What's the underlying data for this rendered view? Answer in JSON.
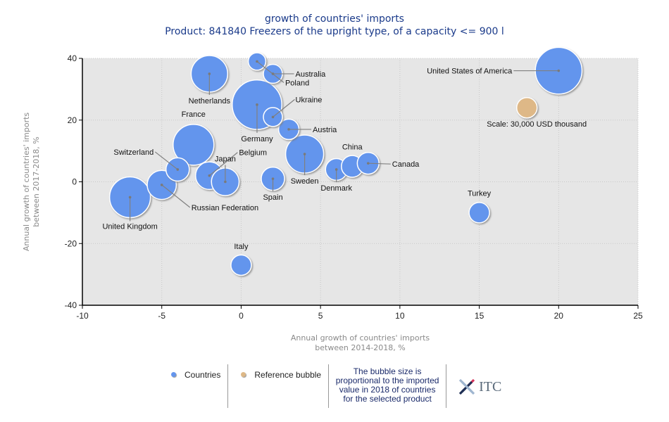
{
  "chart_data": {
    "type": "scatter",
    "subtype": "bubble",
    "title": "growth of countries' imports",
    "subtitle": "Product: 841840 Freezers of the upright type, of a capacity <= 900 l",
    "xlabel": "Annual growth of countries' imports between 2014-2018, %",
    "xlabel_lines": [
      "Annual growth of countries' imports",
      "between 2014-2018, %"
    ],
    "ylabel": "Annual growth of countries' imports between 2017-2018, %",
    "ylabel_lines": [
      "Annual growth of countries' imports",
      "between 2017-2018, %"
    ],
    "xlim": [
      -10,
      25
    ],
    "ylim": [
      -40,
      40
    ],
    "xticks": [
      -10,
      -5,
      0,
      5,
      10,
      15,
      20,
      25
    ],
    "yticks": [
      -40,
      -20,
      0,
      20,
      40
    ],
    "grid": true,
    "size_unit": "USD thousand (imported value 2018, estimated from bubble area)",
    "series": [
      {
        "name": "Countries",
        "color": "#6495ED",
        "points": [
          {
            "label": "United States of America",
            "x": 20,
            "y": 36,
            "size": 157000
          },
          {
            "label": "Netherlands",
            "x": -2,
            "y": 35,
            "size": 96000
          },
          {
            "label": "Poland",
            "x": 1,
            "y": 39,
            "size": 22000
          },
          {
            "label": "Australia",
            "x": 2,
            "y": 35,
            "size": 26000
          },
          {
            "label": "Germany",
            "x": 1,
            "y": 25,
            "size": 177000
          },
          {
            "label": "Ukraine",
            "x": 2,
            "y": 21,
            "size": 26000
          },
          {
            "label": "Austria",
            "x": 3,
            "y": 17,
            "size": 30000
          },
          {
            "label": "France",
            "x": -3,
            "y": 12,
            "size": 120000
          },
          {
            "label": "Sweden",
            "x": 4,
            "y": 9,
            "size": 104000
          },
          {
            "label": "Switzerland",
            "x": -4,
            "y": 4,
            "size": 39000
          },
          {
            "label": "Russian Federation",
            "x": -5,
            "y": -1,
            "size": 61000
          },
          {
            "label": "United Kingdom",
            "x": -7,
            "y": -5,
            "size": 120000
          },
          {
            "label": "Belgium",
            "x": -2,
            "y": 2,
            "size": 55000
          },
          {
            "label": "Japan",
            "x": -1,
            "y": 0,
            "size": 55000
          },
          {
            "label": "Spain",
            "x": 2,
            "y": 1,
            "size": 39000
          },
          {
            "label": "Denmark",
            "x": 6,
            "y": 4,
            "size": 34000
          },
          {
            "label": "China",
            "x": 7,
            "y": 5,
            "size": 34000
          },
          {
            "label": "Canada",
            "x": 8,
            "y": 6,
            "size": 34000
          },
          {
            "label": "Turkey",
            "x": 15,
            "y": -10,
            "size": 30000
          },
          {
            "label": "Italy",
            "x": 0,
            "y": -27,
            "size": 30000
          }
        ]
      },
      {
        "name": "Reference bubble",
        "color": "#DEB887",
        "points": [
          {
            "label": "Scale: 30,000 USD thousand",
            "x": 18,
            "y": 24,
            "size": 30000
          }
        ]
      }
    ],
    "legend": {
      "position": "bottom",
      "entries": [
        {
          "label": "Countries",
          "color": "#6495ED"
        },
        {
          "label": "Reference bubble",
          "color": "#DEB887"
        }
      ],
      "note": "The bubble size is proportional to the imported value in 2018 of countries for the selected product",
      "logo": "ITC"
    }
  },
  "colors": {
    "plot_background": "#E6E6E6",
    "title": "#1A3A8A",
    "axis_title": "#8A8A8A",
    "leader_line": "#808080"
  }
}
